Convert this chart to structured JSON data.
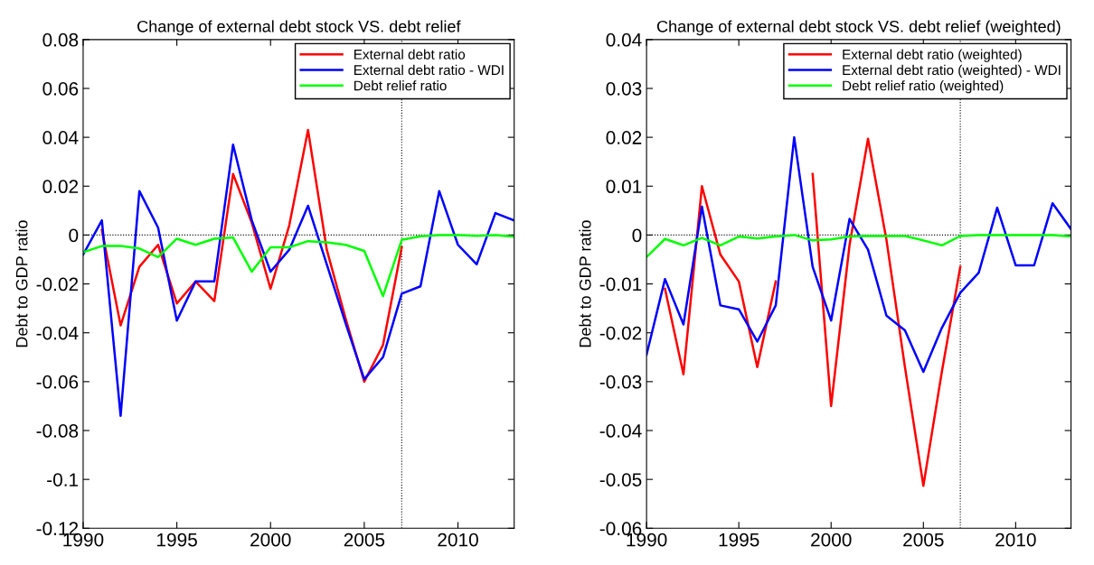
{
  "chart_data": [
    {
      "type": "line",
      "title": "Change of external debt stock VS. debt relief",
      "ylabel": "Debt to GDP ratio",
      "xlim": [
        1990,
        2013
      ],
      "xticks": [
        1990,
        1995,
        2000,
        2005,
        2010
      ],
      "ylim": [
        -0.12,
        0.08
      ],
      "yticks": [
        -0.12,
        -0.1,
        -0.08,
        -0.06,
        -0.04,
        -0.02,
        0,
        0.02,
        0.04,
        0.06,
        0.08
      ],
      "grid": false,
      "legend": "top right",
      "line_style": "solid",
      "marker": "none",
      "ref_lines": [
        {
          "axis": "y",
          "value": 0,
          "color": "#000000",
          "line_style": "dotted"
        },
        {
          "axis": "x",
          "value": 2007,
          "color": "#000000",
          "line_style": "dotted"
        }
      ],
      "series": [
        {
          "name": "External debt ratio",
          "color": "#ff0000",
          "x": [
            1991,
            1992,
            1993,
            1994,
            1995,
            1996,
            1997,
            1998,
            1999,
            2000,
            2001,
            2002,
            2003,
            2004,
            2005,
            2006,
            2007
          ],
          "values": [
            0.002,
            -0.037,
            -0.013,
            -0.004,
            -0.028,
            -0.019,
            -0.027,
            0.025,
            0.005,
            -0.022,
            0.004,
            0.043,
            -0.006,
            -0.034,
            -0.06,
            -0.045,
            -0.005
          ]
        },
        {
          "name": "External debt ratio - WDI",
          "color": "#0000ff",
          "x": [
            1990,
            1991,
            1992,
            1993,
            1994,
            1995,
            1996,
            1997,
            1998,
            1999,
            2000,
            2001,
            2002,
            2003,
            2004,
            2005,
            2006,
            2007,
            2008,
            2009,
            2010,
            2011,
            2012,
            2013
          ],
          "values": [
            -0.008,
            0.006,
            -0.074,
            0.018,
            0.003,
            -0.035,
            -0.019,
            -0.019,
            0.037,
            0.006,
            -0.015,
            -0.006,
            0.012,
            -0.012,
            -0.036,
            -0.059,
            -0.05,
            -0.024,
            -0.021,
            0.018,
            -0.004,
            -0.012,
            0.009,
            0.006
          ]
        },
        {
          "name": "Debt relief ratio",
          "color": "#00ff00",
          "x": [
            1990,
            1991,
            1992,
            1993,
            1994,
            1995,
            1996,
            1997,
            1998,
            1999,
            2000,
            2001,
            2002,
            2003,
            2004,
            2005,
            2006,
            2007,
            2008,
            2009,
            2010,
            2011,
            2012,
            2013
          ],
          "values": [
            -0.007,
            -0.0045,
            -0.0045,
            -0.0055,
            -0.009,
            -0.0015,
            -0.004,
            -0.0015,
            -0.001,
            -0.015,
            -0.005,
            -0.005,
            -0.0025,
            -0.003,
            -0.004,
            -0.0065,
            -0.025,
            -0.002,
            -0.0005,
            0,
            0,
            -0.0003,
            0,
            -0.0007
          ]
        }
      ]
    },
    {
      "type": "line",
      "title": "Change of external debt stock VS. debt relief (weighted)",
      "ylabel": "Debt to GDP ratio",
      "xlim": [
        1990,
        2013
      ],
      "xticks": [
        1990,
        1995,
        2000,
        2005,
        2010
      ],
      "ylim": [
        -0.06,
        0.04
      ],
      "yticks": [
        -0.06,
        -0.05,
        -0.04,
        -0.03,
        -0.02,
        -0.01,
        0,
        0.01,
        0.02,
        0.03,
        0.04
      ],
      "grid": false,
      "legend": "top right",
      "line_style": "solid",
      "marker": "none",
      "ref_lines": [
        {
          "axis": "y",
          "value": 0,
          "color": "#000000",
          "line_style": "dotted"
        },
        {
          "axis": "x",
          "value": 2007,
          "color": "#000000",
          "line_style": "dotted"
        }
      ],
      "series": [
        {
          "name": "External debt ratio (weighted)",
          "color": "#ff0000",
          "x": [
            1991,
            1992,
            1993,
            1994,
            1995,
            1996,
            1997,
            1998,
            1999,
            2000,
            2001,
            2002,
            2003,
            2004,
            2005,
            2006,
            2007
          ],
          "values": [
            -0.011,
            -0.0285,
            0.01,
            -0.004,
            -0.0095,
            -0.027,
            -0.0095,
            null,
            0.0125,
            -0.035,
            -0.002,
            0.0197,
            -0.001,
            -0.027,
            -0.0513,
            -0.028,
            -0.0065
          ]
        },
        {
          "name": "External debt ratio (weighted) - WDI",
          "color": "#0000ff",
          "x": [
            1990,
            1991,
            1992,
            1993,
            1994,
            1995,
            1996,
            1997,
            1998,
            1999,
            2000,
            2001,
            2002,
            2003,
            2004,
            2005,
            2006,
            2007,
            2008,
            2009,
            2010,
            2011,
            2012,
            2013
          ],
          "values": [
            -0.0245,
            -0.009,
            -0.0183,
            0.0058,
            -0.0144,
            -0.0152,
            -0.0218,
            -0.0144,
            0.02,
            -0.0065,
            -0.0175,
            0.0033,
            -0.003,
            -0.0165,
            -0.0195,
            -0.028,
            -0.019,
            -0.0118,
            -0.0077,
            0.0056,
            -0.0062,
            -0.0062,
            0.0065,
            0.0012
          ]
        },
        {
          "name": "Debt relief ratio (weighted)",
          "color": "#00ff00",
          "x": [
            1990,
            1991,
            1992,
            1993,
            1994,
            1995,
            1996,
            1997,
            1998,
            1999,
            2000,
            2001,
            2002,
            2003,
            2004,
            2005,
            2006,
            2007,
            2008,
            2009,
            2010,
            2011,
            2012,
            2013
          ],
          "values": [
            -0.0045,
            -0.0008,
            -0.0021,
            -0.0006,
            -0.0021,
            -0.0003,
            -0.0007,
            -0.0003,
            0,
            -0.0011,
            -0.0009,
            -0.0003,
            -0.0002,
            -0.0002,
            -0.0002,
            -0.0011,
            -0.0021,
            -0.0002,
            0,
            0,
            0,
            0,
            0,
            -0.0003
          ]
        }
      ]
    }
  ]
}
